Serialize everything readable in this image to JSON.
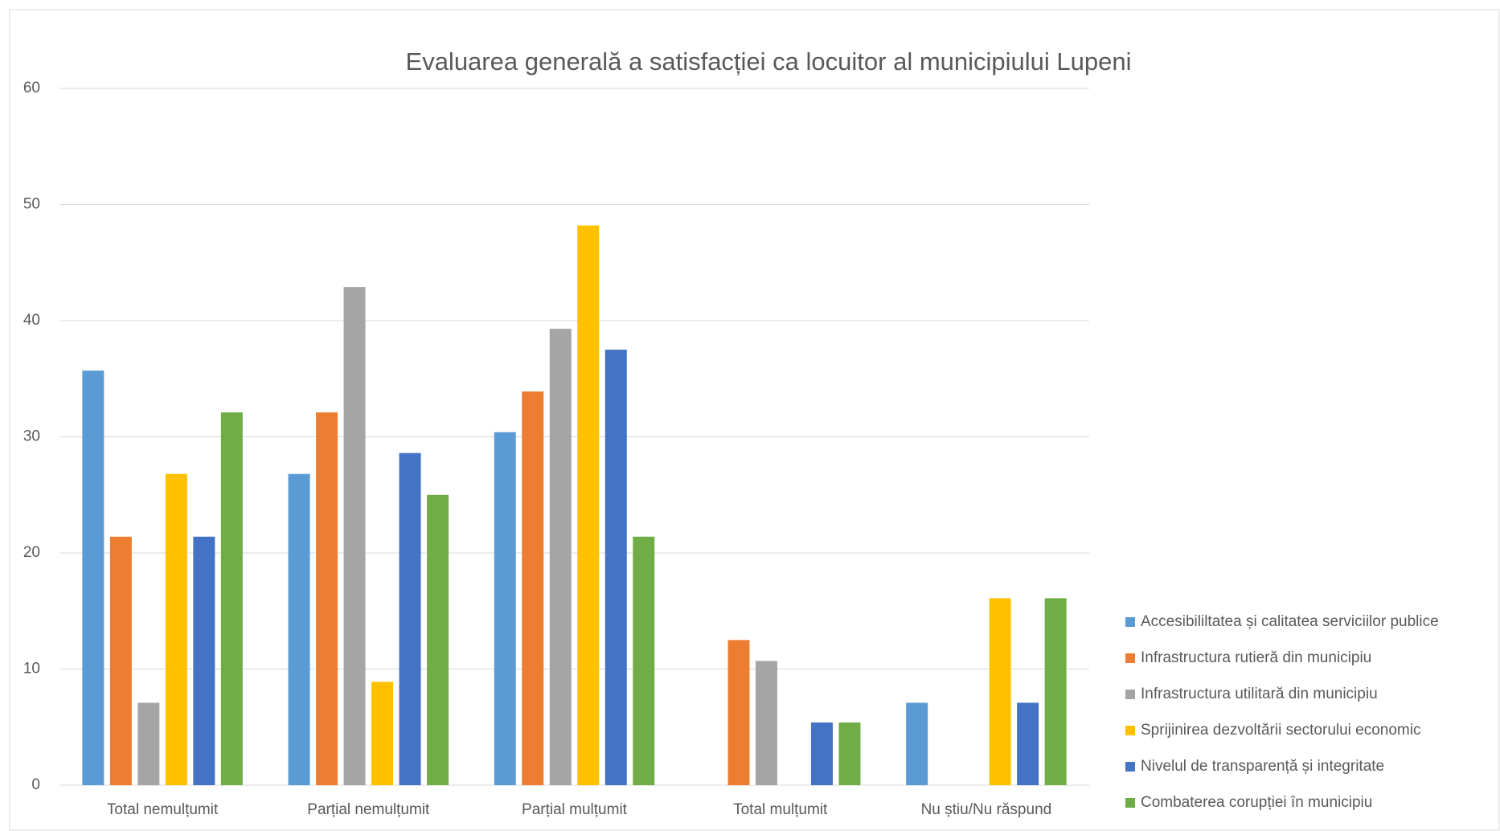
{
  "chart_data": {
    "type": "bar",
    "title": "Evaluarea generală a satisfacției ca locuitor al municipiului Lupeni",
    "categories": [
      "Total nemulțumit",
      "Parțial nemulțumit",
      "Parțial mulțumit",
      "Total mulțumit",
      "Nu știu/Nu răspund"
    ],
    "series": [
      {
        "name": "Accesibililtatea și calitatea serviciilor publice",
        "color": "#5b9bd5",
        "values": [
          35.7,
          26.8,
          30.4,
          0,
          7.1
        ]
      },
      {
        "name": "Infrastructura rutieră din municipiu",
        "color": "#ed7d31",
        "values": [
          21.4,
          32.1,
          33.9,
          12.5,
          0
        ]
      },
      {
        "name": "Infrastructura utilitară din municipiu",
        "color": "#a5a5a5",
        "values": [
          7.1,
          42.9,
          39.3,
          10.7,
          0
        ]
      },
      {
        "name": "Sprijinirea dezvoltării sectorului economic",
        "color": "#ffc000",
        "values": [
          26.8,
          8.9,
          48.2,
          0,
          16.1
        ]
      },
      {
        "name": "Nivelul de transparență și integritate",
        "color": "#4472c4",
        "values": [
          21.4,
          28.6,
          37.5,
          5.4,
          7.1
        ]
      },
      {
        "name": "Combaterea corupției în municipiu",
        "color": "#70ad47",
        "values": [
          32.1,
          25.0,
          21.4,
          5.4,
          16.1
        ]
      }
    ],
    "ylim": [
      0,
      60
    ],
    "yticks": [
      0,
      10,
      20,
      30,
      40,
      50,
      60
    ],
    "grid": true,
    "legend": "right"
  }
}
